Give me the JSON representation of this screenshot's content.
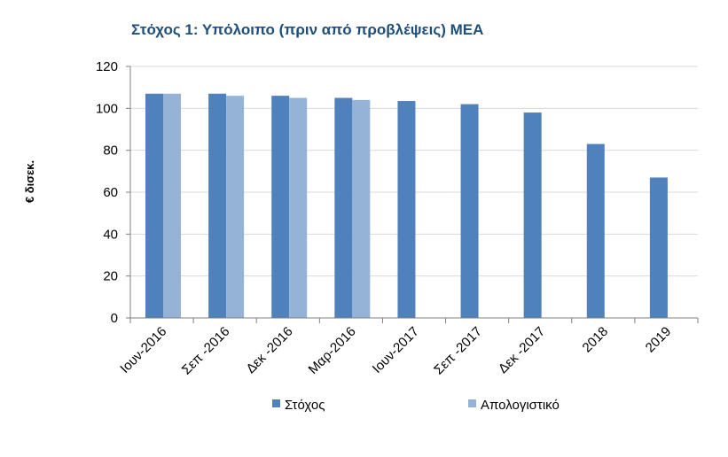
{
  "chart_data": {
    "type": "bar",
    "title": "Στόχος 1: Υπόλοιπο (πριν από προβλέψεις) ΜΕΑ",
    "ylabel": "€ δισεκ.",
    "xlabel": "",
    "ylim": [
      0,
      120
    ],
    "yticks": [
      0,
      20,
      40,
      60,
      80,
      100,
      120
    ],
    "grid": true,
    "legend_position": "bottom",
    "categories": [
      "Ιουν-2016",
      "Σεπ -2016",
      "Δεκ -2016",
      "Μαρ-2016",
      "Ιουν-2017",
      "Σεπ -2017",
      "Δεκ -2017",
      "2018",
      "2019"
    ],
    "series": [
      {
        "name": "Στόχος",
        "color": "#4F81BD",
        "values": [
          107,
          107,
          106,
          105,
          103.5,
          102,
          98,
          83,
          67
        ]
      },
      {
        "name": "Απολογιστικό",
        "color": "#95B3D7",
        "values": [
          107,
          106,
          105,
          104,
          null,
          null,
          null,
          null,
          null
        ]
      }
    ]
  }
}
